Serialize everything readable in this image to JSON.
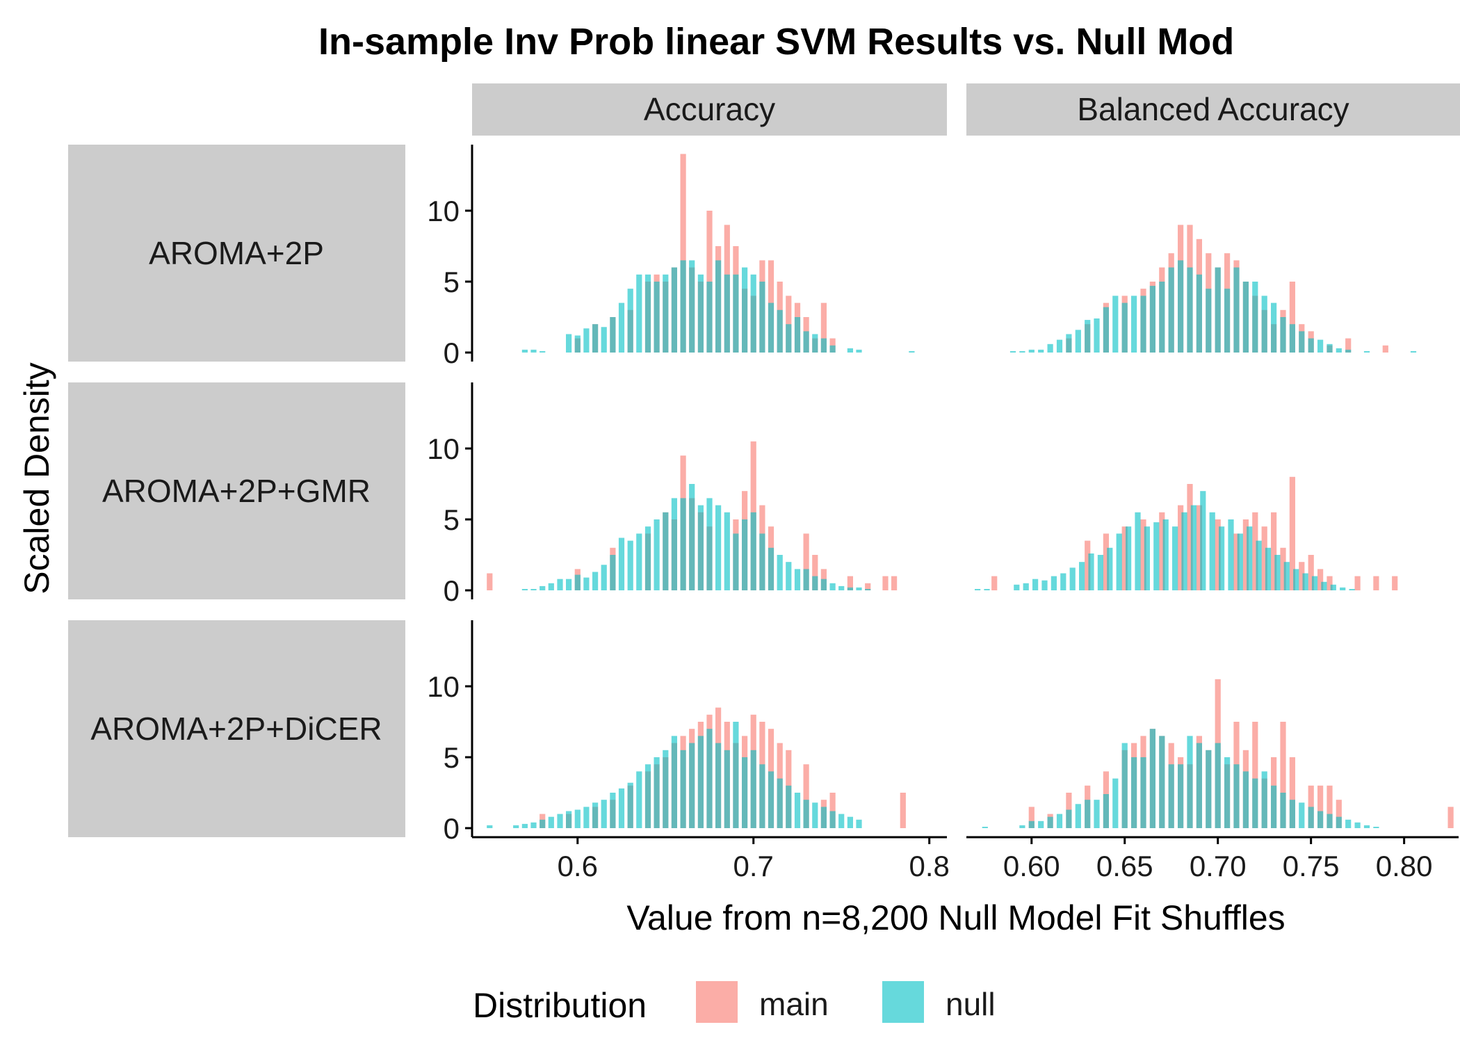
{
  "chart_data": {
    "type": "bar",
    "title": "In-sample Inv Prob linear SVM Results vs. Null Mod",
    "xlabel": "Value from n=8,200 Null Model Fit Shuffles",
    "ylabel": "Scaled Density",
    "facet_columns": [
      "Accuracy",
      "Balanced Accuracy"
    ],
    "facet_rows": [
      "AROMA+2P",
      "AROMA+2P+GMR",
      "AROMA+2P+DiCER"
    ],
    "legend": {
      "title": "Distribution",
      "position": "bottom",
      "entries": [
        "main",
        "null"
      ]
    },
    "colors": {
      "main": "#F8766D",
      "null": "#00BFC4",
      "strip": "#CCCCCC",
      "axis": "#000000"
    },
    "y_ticks": [
      "0",
      "5",
      "10"
    ],
    "ylim": [
      0,
      14.8
    ],
    "x_axes": [
      {
        "panel": "Accuracy",
        "xlim": [
          0.54,
          0.81
        ],
        "ticks": [
          0.6,
          0.7,
          0.8
        ],
        "tick_labels": [
          "0.6",
          "0.7",
          "0.8"
        ]
      },
      {
        "panel": "Balanced Accuracy",
        "xlim": [
          0.565,
          0.83
        ],
        "ticks": [
          0.6,
          0.65,
          0.7,
          0.75,
          0.8
        ],
        "tick_labels": [
          "0.60",
          "0.65",
          "0.70",
          "0.75",
          "0.80"
        ]
      }
    ],
    "series": [
      {
        "name": "main",
        "panels": [
          {
            "row": "AROMA+2P",
            "col": "Accuracy",
            "x": [
              0.6,
              0.61,
              0.62,
              0.63,
              0.64,
              0.645,
              0.65,
              0.655,
              0.66,
              0.665,
              0.67,
              0.675,
              0.68,
              0.685,
              0.69,
              0.695,
              0.7,
              0.705,
              0.71,
              0.715,
              0.72,
              0.725,
              0.73,
              0.735,
              0.74,
              0.745
            ],
            "values": [
              1.0,
              2.0,
              2.5,
              3.0,
              5.0,
              5.5,
              5.0,
              6.0,
              14.0,
              6.0,
              5.0,
              10.0,
              7.5,
              9.0,
              7.5,
              4.5,
              4.0,
              6.5,
              6.5,
              5.0,
              4.0,
              3.5,
              2.5,
              1.0,
              3.5,
              1.0
            ]
          },
          {
            "row": "AROMA+2P",
            "col": "Balanced Accuracy",
            "x": [
              0.62,
              0.63,
              0.64,
              0.65,
              0.66,
              0.665,
              0.67,
              0.675,
              0.68,
              0.685,
              0.69,
              0.695,
              0.7,
              0.705,
              0.71,
              0.715,
              0.72,
              0.725,
              0.73,
              0.735,
              0.74,
              0.745,
              0.75,
              0.76,
              0.77,
              0.79
            ],
            "values": [
              1.0,
              2.0,
              3.5,
              4.0,
              4.5,
              5.0,
              6.0,
              7.0,
              9.0,
              9.0,
              8.0,
              7.0,
              6.0,
              7.0,
              6.5,
              5.0,
              4.0,
              3.0,
              2.0,
              3.0,
              5.0,
              2.0,
              1.5,
              0.5,
              1.0,
              0.5
            ]
          },
          {
            "row": "AROMA+2P+GMR",
            "col": "Accuracy",
            "x": [
              0.55,
              0.6,
              0.62,
              0.64,
              0.65,
              0.655,
              0.66,
              0.665,
              0.67,
              0.675,
              0.69,
              0.695,
              0.7,
              0.705,
              0.71,
              0.73,
              0.735,
              0.74,
              0.755,
              0.765,
              0.775,
              0.78
            ],
            "values": [
              1.2,
              1.5,
              3.0,
              4.0,
              5.5,
              5.0,
              9.5,
              6.5,
              5.5,
              4.5,
              5.0,
              7.0,
              10.5,
              6.0,
              4.5,
              4.0,
              2.5,
              1.5,
              1.0,
              0.5,
              1.0,
              1.0
            ]
          },
          {
            "row": "AROMA+2P+GMR",
            "col": "Balanced Accuracy",
            "x": [
              0.58,
              0.63,
              0.64,
              0.65,
              0.66,
              0.67,
              0.68,
              0.685,
              0.69,
              0.7,
              0.71,
              0.715,
              0.72,
              0.725,
              0.73,
              0.735,
              0.74,
              0.745,
              0.75,
              0.755,
              0.76,
              0.775,
              0.785,
              0.795
            ],
            "values": [
              1.0,
              3.5,
              4.0,
              4.5,
              5.0,
              5.5,
              6.0,
              7.5,
              6.0,
              5.0,
              4.0,
              5.0,
              5.5,
              4.5,
              5.5,
              3.0,
              8.0,
              2.0,
              2.5,
              1.5,
              1.0,
              1.0,
              1.0,
              1.0
            ]
          },
          {
            "row": "AROMA+2P+DiCER",
            "col": "Accuracy",
            "x": [
              0.58,
              0.595,
              0.61,
              0.62,
              0.63,
              0.64,
              0.645,
              0.65,
              0.655,
              0.66,
              0.665,
              0.67,
              0.675,
              0.68,
              0.685,
              0.69,
              0.695,
              0.7,
              0.705,
              0.71,
              0.715,
              0.72,
              0.73,
              0.74,
              0.745,
              0.785
            ],
            "values": [
              1.0,
              1.0,
              1.5,
              2.0,
              3.0,
              4.0,
              4.5,
              5.0,
              6.0,
              6.5,
              7.0,
              7.5,
              8.0,
              8.5,
              7.5,
              6.0,
              6.5,
              8.0,
              7.5,
              7.0,
              6.0,
              5.5,
              4.5,
              2.0,
              2.5,
              2.5
            ]
          },
          {
            "row": "AROMA+2P+DiCER",
            "col": "Balanced Accuracy",
            "x": [
              0.6,
              0.61,
              0.62,
              0.63,
              0.64,
              0.65,
              0.655,
              0.66,
              0.665,
              0.67,
              0.675,
              0.68,
              0.685,
              0.69,
              0.695,
              0.7,
              0.705,
              0.71,
              0.715,
              0.72,
              0.725,
              0.73,
              0.735,
              0.74,
              0.75,
              0.755,
              0.76,
              0.765,
              0.825
            ],
            "values": [
              1.5,
              1.0,
              2.5,
              3.0,
              4.0,
              5.5,
              6.0,
              6.5,
              7.0,
              6.5,
              6.0,
              5.0,
              4.5,
              6.5,
              5.5,
              10.5,
              4.5,
              7.5,
              5.5,
              7.5,
              3.5,
              5.0,
              7.5,
              5.0,
              3.0,
              3.0,
              3.0,
              2.0,
              1.5
            ]
          }
        ]
      },
      {
        "name": "null",
        "panels": [
          {
            "row": "AROMA+2P",
            "col": "Accuracy",
            "x": [
              0.57,
              0.575,
              0.58,
              0.595,
              0.6,
              0.605,
              0.61,
              0.615,
              0.62,
              0.625,
              0.63,
              0.635,
              0.64,
              0.645,
              0.65,
              0.655,
              0.66,
              0.665,
              0.67,
              0.675,
              0.68,
              0.685,
              0.69,
              0.695,
              0.7,
              0.705,
              0.71,
              0.715,
              0.72,
              0.725,
              0.73,
              0.735,
              0.74,
              0.745,
              0.755,
              0.76,
              0.79
            ],
            "values": [
              0.2,
              0.2,
              0.1,
              1.3,
              1.2,
              1.7,
              2.0,
              1.8,
              2.5,
              3.5,
              4.5,
              5.5,
              5.5,
              5.0,
              5.5,
              6.0,
              6.5,
              6.5,
              5.5,
              5.0,
              6.5,
              5.5,
              5.5,
              6.0,
              5.5,
              5.0,
              3.5,
              3.0,
              2.0,
              2.5,
              1.5,
              1.3,
              1.0,
              0.5,
              0.3,
              0.2,
              0.1
            ]
          },
          {
            "row": "AROMA+2P",
            "col": "Balanced Accuracy",
            "x": [
              0.59,
              0.595,
              0.6,
              0.605,
              0.61,
              0.615,
              0.62,
              0.625,
              0.63,
              0.635,
              0.64,
              0.645,
              0.65,
              0.655,
              0.66,
              0.665,
              0.67,
              0.675,
              0.68,
              0.685,
              0.69,
              0.695,
              0.7,
              0.705,
              0.71,
              0.715,
              0.72,
              0.725,
              0.73,
              0.735,
              0.74,
              0.745,
              0.75,
              0.755,
              0.76,
              0.765,
              0.77,
              0.78,
              0.805
            ],
            "values": [
              0.1,
              0.1,
              0.2,
              0.2,
              0.6,
              0.9,
              1.3,
              1.6,
              2.3,
              2.4,
              3.2,
              4.0,
              3.5,
              4.0,
              4.0,
              4.7,
              5.0,
              6.0,
              6.5,
              6.0,
              5.5,
              4.5,
              6.0,
              4.5,
              6.0,
              5.0,
              5.0,
              4.0,
              3.5,
              2.5,
              2.0,
              1.5,
              1.0,
              0.9,
              0.6,
              0.3,
              0.2,
              0.1,
              0.1
            ]
          },
          {
            "row": "AROMA+2P+GMR",
            "col": "Accuracy",
            "x": [
              0.57,
              0.575,
              0.58,
              0.585,
              0.59,
              0.595,
              0.6,
              0.605,
              0.61,
              0.615,
              0.62,
              0.625,
              0.63,
              0.635,
              0.64,
              0.645,
              0.65,
              0.655,
              0.66,
              0.665,
              0.67,
              0.675,
              0.68,
              0.685,
              0.69,
              0.695,
              0.7,
              0.705,
              0.71,
              0.715,
              0.72,
              0.725,
              0.73,
              0.735,
              0.74,
              0.745,
              0.75,
              0.755,
              0.76,
              0.765
            ],
            "values": [
              0.1,
              0.1,
              0.3,
              0.5,
              0.8,
              0.8,
              1.1,
              0.9,
              1.3,
              1.8,
              2.5,
              3.7,
              3.5,
              4.0,
              4.5,
              5.0,
              5.5,
              6.5,
              6.5,
              7.5,
              6.0,
              6.5,
              6.0,
              5.5,
              4.0,
              5.0,
              5.5,
              4.0,
              3.0,
              2.5,
              2.0,
              1.5,
              1.5,
              1.0,
              0.8,
              0.5,
              0.3,
              0.2,
              0.2,
              0.1
            ]
          },
          {
            "row": "AROMA+2P+GMR",
            "col": "Balanced Accuracy",
            "x": [
              0.571,
              0.576,
              0.592,
              0.597,
              0.602,
              0.607,
              0.612,
              0.617,
              0.622,
              0.627,
              0.632,
              0.637,
              0.642,
              0.647,
              0.652,
              0.657,
              0.662,
              0.667,
              0.672,
              0.677,
              0.682,
              0.687,
              0.692,
              0.697,
              0.702,
              0.707,
              0.712,
              0.717,
              0.722,
              0.727,
              0.732,
              0.737,
              0.742,
              0.747,
              0.752,
              0.757,
              0.762,
              0.767,
              0.772
            ],
            "values": [
              0.1,
              0.1,
              0.4,
              0.5,
              0.8,
              0.7,
              1.0,
              1.2,
              1.6,
              2.0,
              2.6,
              2.5,
              3.0,
              4.0,
              4.5,
              5.5,
              4.5,
              4.8,
              5.0,
              4.5,
              5.5,
              6.0,
              7.0,
              5.5,
              4.5,
              5.0,
              4.0,
              4.5,
              3.5,
              3.0,
              2.5,
              2.0,
              1.5,
              1.2,
              1.0,
              0.6,
              0.4,
              0.2,
              0.1
            ]
          },
          {
            "row": "AROMA+2P+DiCER",
            "col": "Accuracy",
            "x": [
              0.55,
              0.565,
              0.57,
              0.575,
              0.58,
              0.585,
              0.59,
              0.595,
              0.6,
              0.605,
              0.61,
              0.615,
              0.62,
              0.625,
              0.63,
              0.635,
              0.64,
              0.645,
              0.65,
              0.655,
              0.66,
              0.665,
              0.67,
              0.675,
              0.68,
              0.685,
              0.69,
              0.695,
              0.7,
              0.705,
              0.71,
              0.715,
              0.72,
              0.725,
              0.73,
              0.735,
              0.74,
              0.745,
              0.75,
              0.755,
              0.76
            ],
            "values": [
              0.2,
              0.2,
              0.3,
              0.4,
              0.6,
              0.8,
              1.0,
              1.2,
              1.3,
              1.5,
              1.8,
              2.0,
              2.5,
              2.8,
              3.2,
              4.0,
              4.5,
              5.0,
              5.5,
              6.5,
              5.5,
              6.0,
              6.5,
              7.0,
              6.0,
              5.5,
              7.5,
              5.0,
              5.5,
              4.5,
              4.0,
              3.5,
              3.0,
              2.5,
              2.0,
              1.8,
              1.5,
              1.2,
              1.0,
              0.8,
              0.6
            ]
          },
          {
            "row": "AROMA+2P+DiCER",
            "col": "Balanced Accuracy",
            "x": [
              0.575,
              0.595,
              0.6,
              0.605,
              0.61,
              0.615,
              0.62,
              0.625,
              0.63,
              0.635,
              0.64,
              0.645,
              0.65,
              0.655,
              0.66,
              0.665,
              0.67,
              0.675,
              0.68,
              0.685,
              0.69,
              0.695,
              0.7,
              0.705,
              0.71,
              0.715,
              0.72,
              0.725,
              0.73,
              0.735,
              0.74,
              0.745,
              0.75,
              0.755,
              0.76,
              0.765,
              0.77,
              0.775,
              0.78,
              0.785
            ],
            "values": [
              0.1,
              0.2,
              0.5,
              0.5,
              0.8,
              1.0,
              1.3,
              1.7,
              2.0,
              2.0,
              2.4,
              3.5,
              6.0,
              5.0,
              5.0,
              7.0,
              6.5,
              4.5,
              4.5,
              6.5,
              6.0,
              5.5,
              6.0,
              5.0,
              4.5,
              4.0,
              3.5,
              4.0,
              3.0,
              2.5,
              2.0,
              1.8,
              1.5,
              1.2,
              1.0,
              0.8,
              0.6,
              0.4,
              0.2,
              0.1
            ]
          }
        ]
      }
    ]
  }
}
